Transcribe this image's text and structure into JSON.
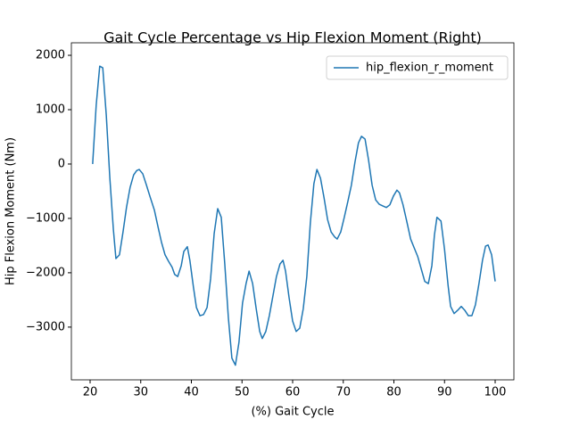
{
  "chart_data": {
    "type": "line",
    "title": "Gait Cycle Percentage vs Hip Flexion Moment (Right)",
    "x_label": "(%) Gait Cycle",
    "y_label": "Hip Flexion Moment (Nm)",
    "x": [
      20.5,
      21.2,
      21.9,
      22.5,
      23.2,
      23.9,
      24.6,
      25.1,
      25.8,
      26.5,
      27.2,
      27.9,
      28.6,
      29.2,
      29.7,
      30.4,
      31.1,
      31.8,
      32.7,
      33.4,
      34.1,
      34.8,
      35.5,
      36.2,
      36.7,
      37.3,
      38.0,
      38.5,
      39.2,
      39.7,
      40.4,
      41.0,
      41.7,
      42.4,
      43.1,
      43.8,
      44.5,
      45.2,
      45.9,
      46.6,
      47.3,
      48.0,
      48.7,
      49.4,
      50.1,
      50.8,
      51.4,
      52.1,
      52.8,
      53.5,
      54.0,
      54.7,
      55.4,
      56.1,
      56.8,
      57.5,
      58.1,
      58.6,
      59.3,
      60.0,
      60.7,
      61.4,
      62.1,
      62.8,
      63.5,
      64.2,
      64.8,
      65.5,
      66.2,
      66.9,
      67.6,
      68.3,
      68.8,
      69.5,
      70.2,
      70.9,
      71.6,
      72.3,
      73.0,
      73.6,
      74.3,
      75.0,
      75.7,
      76.4,
      77.1,
      77.8,
      78.5,
      79.2,
      79.9,
      80.6,
      81.1,
      81.8,
      82.6,
      83.3,
      84.0,
      84.7,
      85.4,
      86.1,
      86.8,
      87.5,
      88.0,
      88.5,
      89.3,
      90.0,
      90.7,
      91.2,
      91.9,
      92.6,
      93.3,
      94.0,
      94.7,
      95.4,
      96.1,
      96.8,
      97.5,
      98.1,
      98.6,
      99.3,
      100.0
    ],
    "series": [
      {
        "name": "hip_flexion_r_moment",
        "color": "#1f77b4",
        "values": [
          0,
          1080,
          1800,
          1770,
          890,
          -260,
          -1210,
          -1740,
          -1670,
          -1250,
          -790,
          -430,
          -200,
          -120,
          -100,
          -180,
          -380,
          -590,
          -850,
          -1150,
          -1440,
          -1670,
          -1790,
          -1900,
          -2030,
          -2070,
          -1870,
          -1610,
          -1520,
          -1770,
          -2260,
          -2640,
          -2790,
          -2770,
          -2640,
          -2110,
          -1280,
          -820,
          -980,
          -1840,
          -2820,
          -3570,
          -3700,
          -3280,
          -2560,
          -2200,
          -1970,
          -2200,
          -2660,
          -3080,
          -3210,
          -3080,
          -2790,
          -2430,
          -2070,
          -1840,
          -1770,
          -1970,
          -2460,
          -2890,
          -3080,
          -3020,
          -2660,
          -2070,
          -1080,
          -360,
          -100,
          -260,
          -620,
          -1020,
          -1250,
          -1340,
          -1380,
          -1250,
          -980,
          -690,
          -390,
          30,
          390,
          510,
          460,
          70,
          -390,
          -660,
          -740,
          -770,
          -800,
          -750,
          -590,
          -480,
          -530,
          -750,
          -1080,
          -1380,
          -1540,
          -1700,
          -1930,
          -2160,
          -2200,
          -1870,
          -1310,
          -980,
          -1050,
          -1570,
          -2230,
          -2620,
          -2750,
          -2690,
          -2620,
          -2690,
          -2790,
          -2790,
          -2590,
          -2200,
          -1770,
          -1510,
          -1490,
          -1670,
          -2160
        ]
      }
    ],
    "xlim": [
      16.3,
      103.7
    ],
    "ylim": [
      -3970,
      2230
    ],
    "xticks": [
      20,
      30,
      40,
      50,
      60,
      70,
      80,
      90,
      100
    ],
    "yticks": [
      {
        "value": -3000,
        "label": "−3000"
      },
      {
        "value": -2000,
        "label": "−2000"
      },
      {
        "value": -1000,
        "label": "−1000"
      },
      0,
      1000,
      2000
    ],
    "legend": "upper right"
  }
}
